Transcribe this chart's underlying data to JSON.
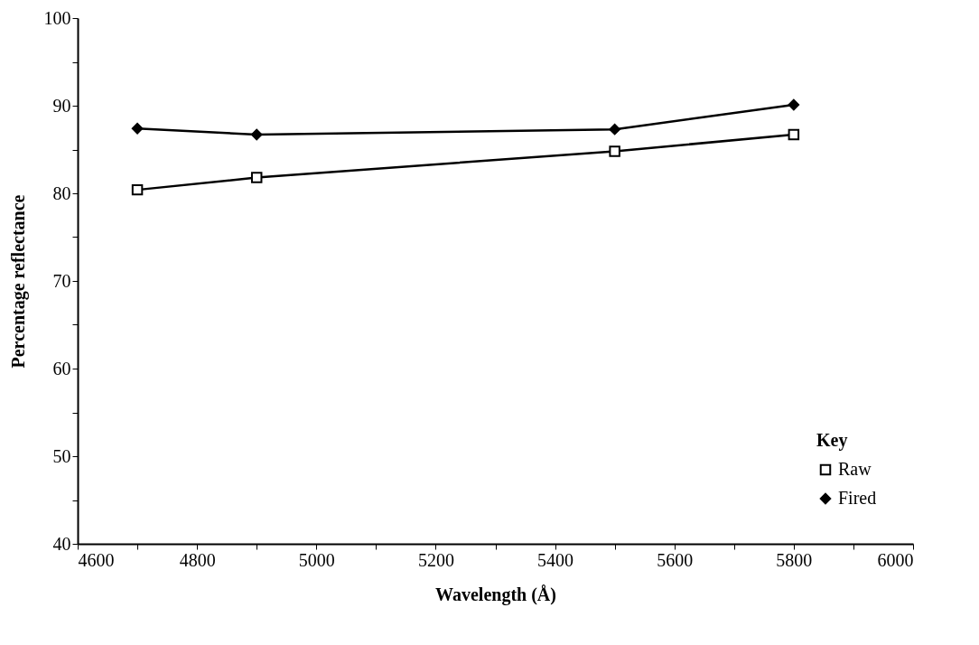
{
  "chart_data": {
    "type": "line",
    "xlabel": "Wavelength (Å)",
    "ylabel": "Percentage reflectance",
    "legend_title": "Key",
    "legend": "bottom right",
    "grid": false,
    "xlim": [
      4600,
      6000
    ],
    "ylim": [
      40,
      100
    ],
    "xticks": [
      4600,
      {
        "value": 4700,
        "label": null
      },
      4800,
      {
        "value": 4900,
        "label": null
      },
      5000,
      {
        "value": 5100,
        "label": null
      },
      5200,
      {
        "value": 5300,
        "label": null
      },
      5400,
      {
        "value": 5500,
        "label": null
      },
      5600,
      {
        "value": 5700,
        "label": null
      },
      5800,
      {
        "value": 5900,
        "label": null
      },
      6000
    ],
    "yticks": [
      40,
      {
        "value": 45,
        "label": null
      },
      50,
      {
        "value": 55,
        "label": null
      },
      60,
      {
        "value": 65,
        "label": null
      },
      70,
      {
        "value": 75,
        "label": null
      },
      80,
      {
        "value": 85,
        "label": null
      },
      90,
      {
        "value": 95,
        "label": null
      },
      100
    ],
    "x": [
      4700,
      4900,
      5500,
      5800
    ],
    "series": [
      {
        "name": "Raw",
        "color": "#000000",
        "marker": "square",
        "values": [
          80.4,
          81.8,
          84.8,
          86.7
        ]
      },
      {
        "name": "Fired",
        "color": "#000000",
        "marker": "diamond",
        "values": [
          87.4,
          86.7,
          87.3,
          90.1
        ]
      }
    ]
  }
}
